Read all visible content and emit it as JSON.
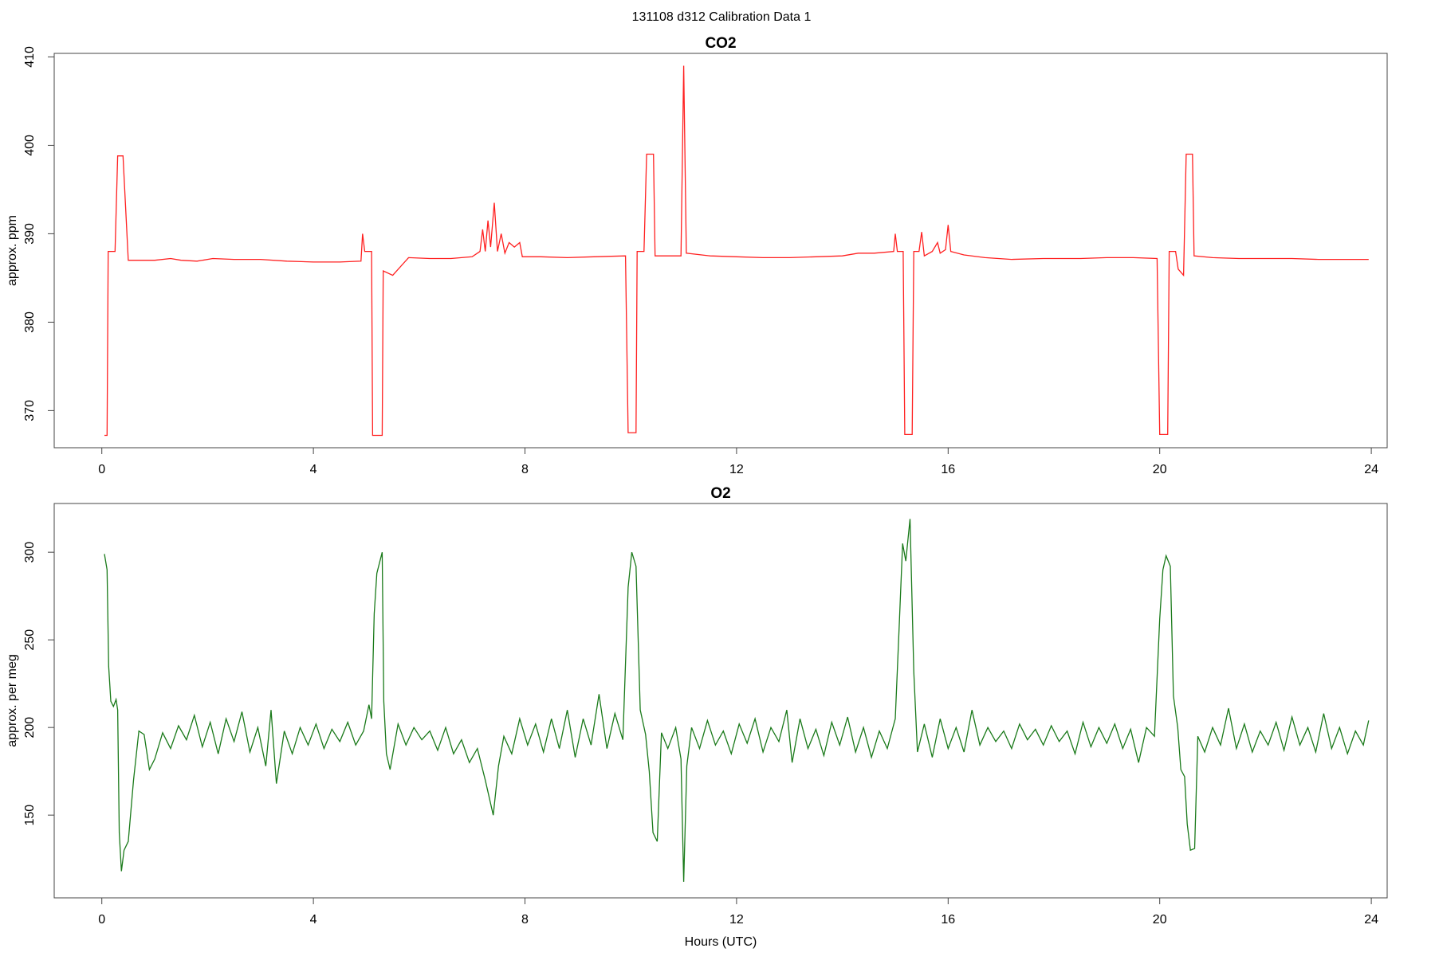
{
  "title": "131108   d312   Calibration Data 1",
  "chart_data": [
    {
      "type": "line",
      "title": "CO2",
      "ylabel": "approx. ppm",
      "color": "#ff2020",
      "xlim": [
        -0.9,
        24.3
      ],
      "xticks": [
        0,
        4,
        8,
        12,
        16,
        20,
        24
      ],
      "ylim": [
        365.8,
        410.4
      ],
      "yticks": [
        370,
        380,
        390,
        400,
        410
      ],
      "x": [
        0.05,
        0.1,
        0.12,
        0.25,
        0.3,
        0.4,
        0.5,
        0.55,
        1.0,
        1.3,
        1.5,
        1.8,
        2.1,
        2.5,
        3.0,
        3.5,
        4.0,
        4.5,
        4.9,
        4.93,
        4.97,
        5.1,
        5.12,
        5.3,
        5.32,
        5.5,
        5.8,
        6.2,
        6.6,
        7.0,
        7.15,
        7.2,
        7.25,
        7.3,
        7.35,
        7.42,
        7.48,
        7.55,
        7.62,
        7.7,
        7.8,
        7.9,
        7.95,
        8.3,
        8.8,
        9.3,
        9.9,
        9.95,
        10.1,
        10.12,
        10.25,
        10.3,
        10.43,
        10.46,
        10.95,
        11.0,
        11.05,
        11.5,
        12.0,
        12.5,
        13.0,
        13.5,
        14.0,
        14.3,
        14.6,
        14.97,
        15.0,
        15.04,
        15.15,
        15.18,
        15.32,
        15.35,
        15.45,
        15.5,
        15.55,
        15.7,
        15.8,
        15.85,
        15.95,
        16.0,
        16.05,
        16.3,
        16.7,
        17.2,
        17.8,
        18.5,
        19.0,
        19.5,
        19.95,
        20.0,
        20.15,
        20.18,
        20.3,
        20.35,
        20.45,
        20.5,
        20.62,
        20.65,
        21.0,
        21.5,
        22.0,
        22.5,
        23.0,
        23.5,
        23.95
      ],
      "values": [
        367.2,
        367.2,
        388,
        388,
        398.8,
        398.8,
        387,
        387,
        387,
        387.2,
        387,
        386.9,
        387.2,
        387.1,
        387.1,
        386.9,
        386.8,
        386.8,
        386.9,
        390,
        388,
        388,
        367.2,
        367.2,
        385.8,
        385.3,
        387.3,
        387.2,
        387.2,
        387.4,
        388,
        390.5,
        388,
        391.5,
        388.5,
        393.5,
        388,
        390,
        387.8,
        389,
        388.5,
        389,
        387.4,
        387.4,
        387.3,
        387.4,
        387.5,
        367.5,
        367.5,
        388,
        388,
        399,
        399,
        387.5,
        387.5,
        409,
        387.8,
        387.5,
        387.4,
        387.3,
        387.3,
        387.4,
        387.5,
        387.8,
        387.8,
        388,
        390,
        388,
        388,
        367.3,
        367.3,
        388,
        388,
        390.2,
        387.5,
        388,
        389,
        387.8,
        388.2,
        391,
        388,
        387.6,
        387.3,
        387.1,
        387.2,
        387.2,
        387.3,
        387.3,
        387.2,
        367.3,
        367.3,
        388,
        388,
        386,
        385.3,
        399,
        399,
        387.5,
        387.3,
        387.2,
        387.2,
        387.2,
        387.1,
        387.1,
        387.1
      ]
    },
    {
      "type": "line",
      "title": "O2",
      "ylabel": "approx. per meg",
      "xlabel": "Hours (UTC)",
      "color": "#1a7a1a",
      "xlim": [
        -0.9,
        24.3
      ],
      "xticks": [
        0,
        4,
        8,
        12,
        16,
        20,
        24
      ],
      "ylim": [
        102.8,
        327.8
      ],
      "yticks": [
        150,
        200,
        250,
        300
      ],
      "x": [
        0.05,
        0.1,
        0.13,
        0.17,
        0.22,
        0.27,
        0.3,
        0.33,
        0.37,
        0.42,
        0.5,
        0.6,
        0.7,
        0.8,
        0.9,
        1.0,
        1.15,
        1.3,
        1.45,
        1.6,
        1.75,
        1.9,
        2.05,
        2.2,
        2.35,
        2.5,
        2.65,
        2.8,
        2.95,
        3.1,
        3.2,
        3.3,
        3.45,
        3.6,
        3.75,
        3.9,
        4.05,
        4.2,
        4.35,
        4.5,
        4.65,
        4.8,
        4.95,
        5.05,
        5.1,
        5.15,
        5.2,
        5.3,
        5.33,
        5.38,
        5.45,
        5.6,
        5.75,
        5.9,
        6.05,
        6.2,
        6.35,
        6.5,
        6.65,
        6.8,
        6.95,
        7.1,
        7.25,
        7.4,
        7.5,
        7.6,
        7.75,
        7.9,
        8.05,
        8.2,
        8.35,
        8.5,
        8.65,
        8.8,
        8.95,
        9.1,
        9.25,
        9.4,
        9.55,
        9.7,
        9.85,
        9.95,
        10.02,
        10.1,
        10.18,
        10.28,
        10.35,
        10.42,
        10.5,
        10.58,
        10.7,
        10.85,
        10.95,
        11.0,
        11.06,
        11.15,
        11.3,
        11.45,
        11.6,
        11.75,
        11.9,
        12.05,
        12.2,
        12.35,
        12.5,
        12.65,
        12.8,
        12.95,
        13.05,
        13.2,
        13.35,
        13.5,
        13.65,
        13.8,
        13.95,
        14.1,
        14.25,
        14.4,
        14.55,
        14.7,
        14.85,
        15.0,
        15.08,
        15.14,
        15.2,
        15.28,
        15.35,
        15.42,
        15.55,
        15.7,
        15.85,
        16.0,
        16.15,
        16.3,
        16.45,
        16.6,
        16.75,
        16.9,
        17.05,
        17.2,
        17.35,
        17.5,
        17.65,
        17.8,
        17.95,
        18.1,
        18.25,
        18.4,
        18.55,
        18.7,
        18.85,
        19.0,
        19.15,
        19.3,
        19.45,
        19.6,
        19.75,
        19.9,
        20.0,
        20.06,
        20.12,
        20.2,
        20.26,
        20.34,
        20.4,
        20.47,
        20.52,
        20.58,
        20.66,
        20.72,
        20.85,
        21.0,
        21.15,
        21.3,
        21.45,
        21.6,
        21.75,
        21.9,
        22.05,
        22.2,
        22.35,
        22.5,
        22.65,
        22.8,
        22.95,
        23.1,
        23.25,
        23.4,
        23.55,
        23.7,
        23.85,
        23.95
      ],
      "values": [
        299,
        290,
        235,
        215,
        212,
        216,
        210,
        140,
        118,
        130,
        135,
        170,
        198,
        196,
        176,
        182,
        197,
        188,
        201,
        193,
        207,
        189,
        203,
        185,
        205,
        192,
        209,
        186,
        200,
        178,
        210,
        168,
        198,
        185,
        200,
        190,
        202,
        188,
        199,
        192,
        203,
        190,
        198,
        213,
        205,
        265,
        288,
        300,
        215,
        185,
        176,
        202,
        190,
        200,
        193,
        198,
        187,
        200,
        185,
        193,
        180,
        188,
        170,
        150,
        178,
        195,
        185,
        205,
        190,
        202,
        186,
        205,
        188,
        210,
        183,
        205,
        190,
        219,
        188,
        208,
        193,
        280,
        300,
        292,
        210,
        196,
        175,
        140,
        135,
        197,
        188,
        200,
        182,
        112,
        178,
        200,
        188,
        204,
        190,
        198,
        185,
        202,
        191,
        205,
        186,
        200,
        192,
        210,
        180,
        205,
        188,
        199,
        184,
        203,
        190,
        206,
        186,
        200,
        183,
        198,
        188,
        205,
        262,
        305,
        295,
        319,
        232,
        186,
        202,
        183,
        205,
        188,
        200,
        186,
        210,
        190,
        200,
        192,
        198,
        188,
        202,
        193,
        199,
        190,
        201,
        192,
        198,
        185,
        203,
        189,
        200,
        191,
        202,
        188,
        199,
        180,
        200,
        195,
        262,
        290,
        298,
        292,
        218,
        200,
        176,
        172,
        145,
        130,
        131,
        195,
        186,
        200,
        190,
        211,
        188,
        202,
        186,
        198,
        190,
        203,
        187,
        206,
        190,
        200,
        186,
        208,
        188,
        200,
        185,
        198,
        190,
        204
      ]
    }
  ]
}
